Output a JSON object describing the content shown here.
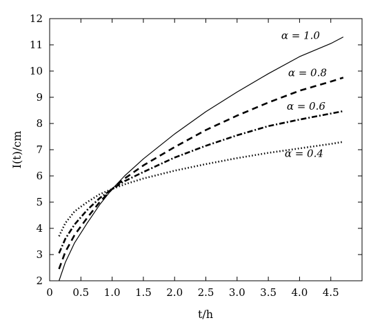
{
  "chart_data": {
    "type": "line",
    "xlabel": "t/h",
    "ylabel": "I(t)/cm",
    "xlim": [
      0,
      5
    ],
    "ylim": [
      2,
      12
    ],
    "xticks": [
      0,
      0.5,
      1.0,
      1.5,
      2.0,
      2.5,
      3.0,
      3.5,
      4.0,
      4.5
    ],
    "xtick_labels": [
      "0",
      "0.5",
      "1.0",
      "1.5",
      "2.0",
      "2.5",
      "3.0",
      "3.5",
      "4.0",
      "4.5"
    ],
    "yticks": [
      2,
      3,
      4,
      5,
      6,
      7,
      8,
      9,
      10,
      11,
      12
    ],
    "ytick_labels": [
      "2",
      "3",
      "4",
      "5",
      "6",
      "7",
      "8",
      "9",
      "10",
      "11",
      "12"
    ],
    "grid": false,
    "legend": "inline labels near line ends",
    "series": [
      {
        "name": "α = 1.0",
        "line_style": "solid",
        "x": [
          0.15,
          0.25,
          0.4,
          0.6,
          0.8,
          1.0,
          1.2,
          1.5,
          2.0,
          2.5,
          3.0,
          3.5,
          4.0,
          4.5,
          4.7
        ],
        "y": [
          2.0,
          2.7,
          3.45,
          4.2,
          4.9,
          5.5,
          6.0,
          6.65,
          7.6,
          8.45,
          9.2,
          9.9,
          10.55,
          11.05,
          11.3
        ]
      },
      {
        "name": "α = 0.8",
        "line_style": "dashed",
        "x": [
          0.15,
          0.25,
          0.4,
          0.6,
          0.8,
          1.0,
          1.2,
          1.5,
          2.0,
          2.5,
          3.0,
          3.5,
          4.0,
          4.5,
          4.7
        ],
        "y": [
          2.45,
          3.1,
          3.75,
          4.4,
          5.0,
          5.5,
          5.9,
          6.4,
          7.1,
          7.75,
          8.3,
          8.8,
          9.25,
          9.6,
          9.75
        ]
      },
      {
        "name": "α = 0.6",
        "line_style": "dashdot",
        "x": [
          0.15,
          0.25,
          0.4,
          0.6,
          0.8,
          1.0,
          1.2,
          1.5,
          2.0,
          2.5,
          3.0,
          3.5,
          4.0,
          4.5,
          4.7
        ],
        "y": [
          3.05,
          3.6,
          4.15,
          4.7,
          5.15,
          5.5,
          5.8,
          6.15,
          6.7,
          7.15,
          7.55,
          7.9,
          8.15,
          8.38,
          8.47
        ]
      },
      {
        "name": "α = 0.4",
        "line_style": "dotted",
        "x": [
          0.15,
          0.25,
          0.4,
          0.6,
          0.8,
          1.0,
          1.2,
          1.5,
          2.0,
          2.5,
          3.0,
          3.5,
          4.0,
          4.5,
          4.7
        ],
        "y": [
          3.7,
          4.2,
          4.65,
          5.0,
          5.3,
          5.5,
          5.68,
          5.9,
          6.2,
          6.45,
          6.68,
          6.88,
          7.05,
          7.22,
          7.3
        ]
      }
    ]
  }
}
